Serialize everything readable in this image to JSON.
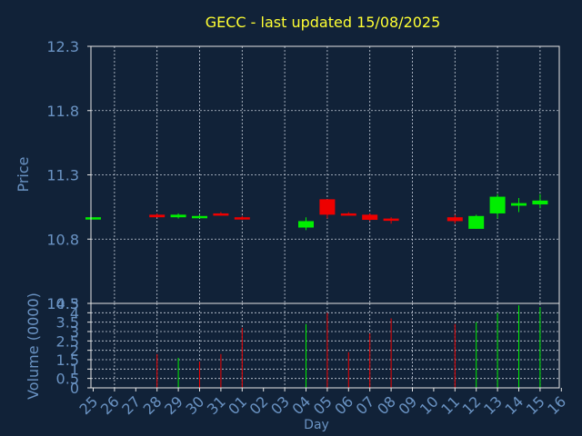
{
  "colors": {
    "background": "#112238",
    "title": "#ffff33",
    "axis_text": "#6a93c3",
    "grid": "#c8d0dc",
    "up": "#00ee00",
    "down": "#ee0000"
  },
  "chart_data": [
    {
      "type": "candlestick",
      "title": "GECC - last updated 15/08/2025",
      "ylabel": "Price",
      "ylim": [
        10.3,
        12.3
      ],
      "yticks": [
        "12.3",
        "11.8",
        "11.3",
        "10.8",
        "10.3"
      ],
      "ytick_values": [
        12.3,
        11.8,
        11.3,
        10.8,
        10.3
      ],
      "grid": true,
      "x": [
        "25",
        "26",
        "27",
        "28",
        "29",
        "30",
        "31",
        "01",
        "02",
        "03",
        "04",
        "05",
        "06",
        "07",
        "08",
        "09",
        "10",
        "11",
        "12",
        "13",
        "14",
        "15",
        "16"
      ],
      "candles": [
        {
          "x": "25",
          "open": 10.97,
          "high": 10.97,
          "low": 10.97,
          "close": 10.97
        },
        {
          "x": "28",
          "open": 10.99,
          "high": 11.0,
          "low": 10.97,
          "close": 10.97
        },
        {
          "x": "29",
          "open": 10.97,
          "high": 11.0,
          "low": 10.96,
          "close": 10.99
        },
        {
          "x": "30",
          "open": 10.98,
          "high": 10.99,
          "low": 10.97,
          "close": 10.98
        },
        {
          "x": "31",
          "open": 11.0,
          "high": 11.01,
          "low": 10.99,
          "close": 10.99
        },
        {
          "x": "01",
          "open": 10.97,
          "high": 10.98,
          "low": 10.95,
          "close": 10.96
        },
        {
          "x": "04",
          "open": 10.89,
          "high": 10.97,
          "low": 10.87,
          "close": 10.94
        },
        {
          "x": "05",
          "open": 11.11,
          "high": 11.11,
          "low": 10.96,
          "close": 10.99
        },
        {
          "x": "06",
          "open": 11.0,
          "high": 11.01,
          "low": 10.99,
          "close": 10.99
        },
        {
          "x": "07",
          "open": 10.99,
          "high": 11.0,
          "low": 10.94,
          "close": 10.95
        },
        {
          "x": "08",
          "open": 10.96,
          "high": 10.97,
          "low": 10.92,
          "close": 10.95
        },
        {
          "x": "11",
          "open": 10.97,
          "high": 10.99,
          "low": 10.92,
          "close": 10.94
        },
        {
          "x": "12",
          "open": 10.88,
          "high": 10.99,
          "low": 10.88,
          "close": 10.98
        },
        {
          "x": "13",
          "open": 11.0,
          "high": 11.15,
          "low": 10.96,
          "close": 11.13
        },
        {
          "x": "14",
          "open": 11.06,
          "high": 11.12,
          "low": 11.01,
          "close": 11.08
        },
        {
          "x": "15",
          "open": 11.07,
          "high": 11.15,
          "low": 11.04,
          "close": 11.1
        }
      ]
    },
    {
      "type": "bar",
      "ylabel": "Volume (0000)",
      "xlabel": "Day",
      "ylim": [
        0,
        4.5
      ],
      "yticks": [
        "4.5",
        "4",
        "3.5",
        "3",
        "2.5",
        "2",
        "1.5",
        "1",
        "0.5",
        "0"
      ],
      "ytick_values": [
        4.5,
        4,
        3.5,
        3,
        2.5,
        2,
        1.5,
        1,
        0.5,
        0
      ],
      "grid": true,
      "x": [
        "25",
        "26",
        "27",
        "28",
        "29",
        "30",
        "31",
        "01",
        "02",
        "03",
        "04",
        "05",
        "06",
        "07",
        "08",
        "09",
        "10",
        "11",
        "12",
        "13",
        "14",
        "15",
        "16"
      ],
      "bars": [
        {
          "x": "28",
          "value": 1.8,
          "direction": "down"
        },
        {
          "x": "29",
          "value": 1.6,
          "direction": "up"
        },
        {
          "x": "30",
          "value": 1.4,
          "direction": "down"
        },
        {
          "x": "31",
          "value": 1.8,
          "direction": "down"
        },
        {
          "x": "01",
          "value": 3.2,
          "direction": "down"
        },
        {
          "x": "04",
          "value": 3.4,
          "direction": "up"
        },
        {
          "x": "05",
          "value": 4.0,
          "direction": "down"
        },
        {
          "x": "06",
          "value": 1.9,
          "direction": "down"
        },
        {
          "x": "07",
          "value": 2.9,
          "direction": "down"
        },
        {
          "x": "08",
          "value": 3.7,
          "direction": "down"
        },
        {
          "x": "11",
          "value": 3.4,
          "direction": "down"
        },
        {
          "x": "12",
          "value": 3.5,
          "direction": "up"
        },
        {
          "x": "13",
          "value": 4.0,
          "direction": "up"
        },
        {
          "x": "14",
          "value": 4.4,
          "direction": "up"
        },
        {
          "x": "15",
          "value": 4.3,
          "direction": "up"
        }
      ]
    }
  ]
}
